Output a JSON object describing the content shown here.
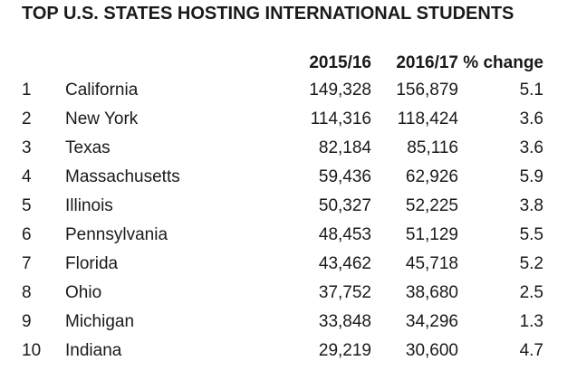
{
  "chart_data": {
    "type": "table",
    "title": "TOP U.S. STATES HOSTING INTERNATIONAL STUDENTS",
    "columns": [
      "",
      "",
      "2015/16",
      "2016/17",
      "% change"
    ],
    "rows": [
      {
        "rank": "1",
        "state": "California",
        "y2015": "149,328",
        "y2016": "156,879",
        "change": "5.1"
      },
      {
        "rank": "2",
        "state": "New York",
        "y2015": "114,316",
        "y2016": "118,424",
        "change": "3.6"
      },
      {
        "rank": "3",
        "state": "Texas",
        "y2015": "82,184",
        "y2016": "85,116",
        "change": "3.6"
      },
      {
        "rank": "4",
        "state": "Massachusetts",
        "y2015": "59,436",
        "y2016": "62,926",
        "change": "5.9"
      },
      {
        "rank": "5",
        "state": "Illinois",
        "y2015": "50,327",
        "y2016": "52,225",
        "change": "3.8"
      },
      {
        "rank": "6",
        "state": "Pennsylvania",
        "y2015": "48,453",
        "y2016": "51,129",
        "change": "5.5"
      },
      {
        "rank": "7",
        "state": "Florida",
        "y2015": "43,462",
        "y2016": "45,718",
        "change": "5.2"
      },
      {
        "rank": "8",
        "state": "Ohio",
        "y2015": "37,752",
        "y2016": "38,680",
        "change": "2.5"
      },
      {
        "rank": "9",
        "state": "Michigan",
        "y2015": "33,848",
        "y2016": "34,296",
        "change": "1.3"
      },
      {
        "rank": "10",
        "state": "Indiana",
        "y2015": "29,219",
        "y2016": "30,600",
        "change": "4.7"
      }
    ]
  }
}
